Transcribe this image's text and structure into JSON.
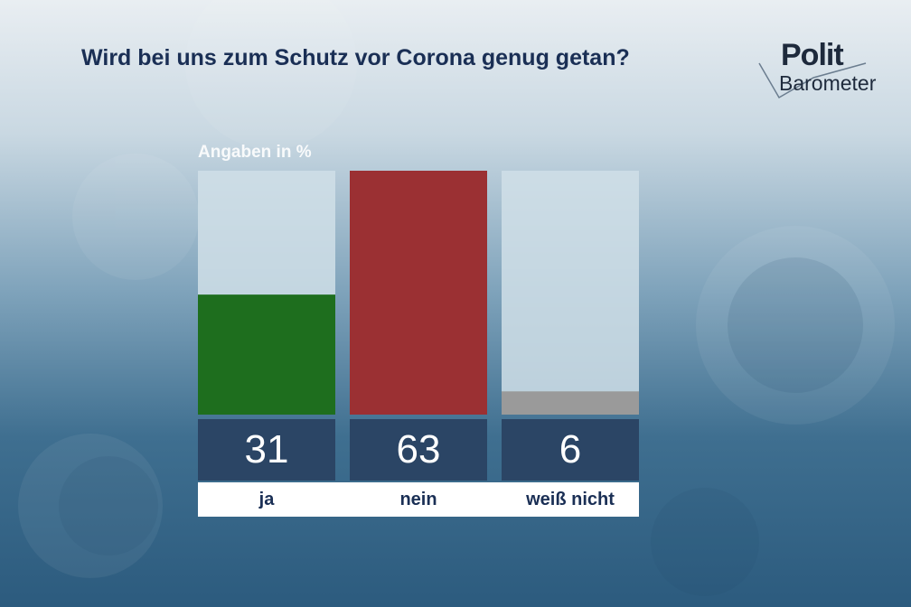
{
  "title": "Wird bei uns zum Schutz vor Corona genug getan?",
  "logo": {
    "line1": "Polit",
    "line2": "Barometer"
  },
  "chart_data": {
    "type": "bar",
    "unit_label": "Angaben in %",
    "categories": [
      "ja",
      "nein",
      "weiß nicht"
    ],
    "values": [
      31,
      63,
      6
    ],
    "colors": [
      "#1e6e1e",
      "#9b3033",
      "#9a9a9a"
    ],
    "ylim": [
      0,
      63
    ],
    "track_color": "#d0dfe8",
    "grid": false
  }
}
